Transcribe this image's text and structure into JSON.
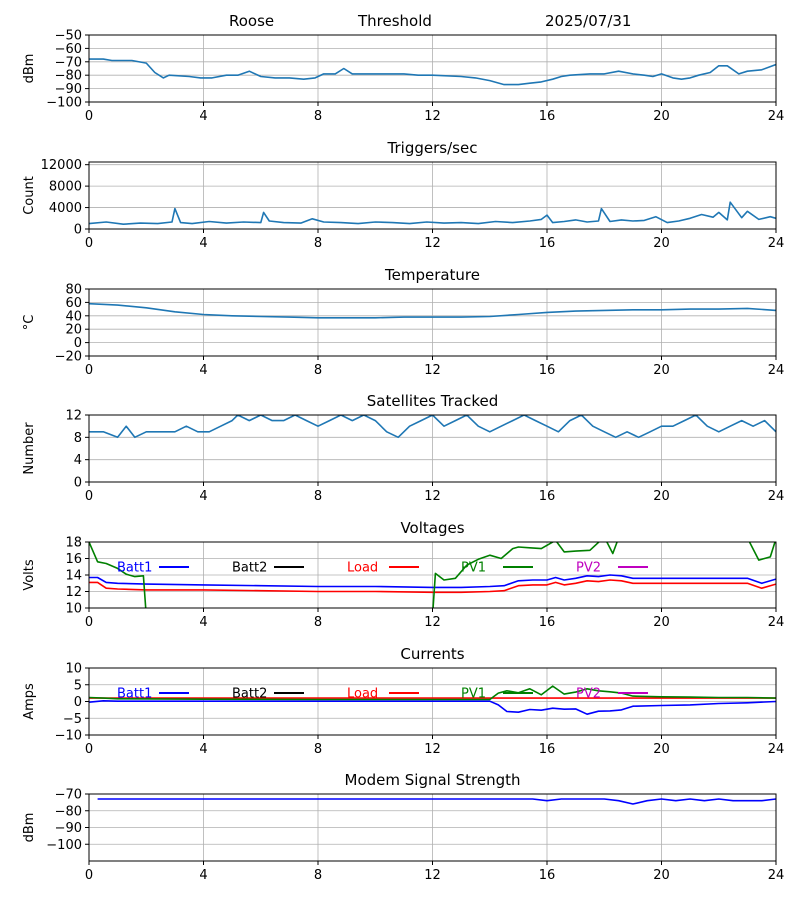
{
  "header": {
    "station": "Roose",
    "mode": "Threshold",
    "date": "2025/07/31"
  },
  "colors": {
    "trace": "#1f77b4",
    "batt1": "#0000ff",
    "batt2": "#000000",
    "load": "#ff0000",
    "pv1": "#008000",
    "pv2": "#bf00bf",
    "grid": "#b0b0b0"
  },
  "chart_data": [
    {
      "id": "signal",
      "type": "line",
      "title": "",
      "xlabel": "",
      "ylabel": "dBm",
      "xlim": [
        0,
        24
      ],
      "ylim": [
        -100,
        -50
      ],
      "xticks": [
        0,
        4,
        8,
        12,
        16,
        20,
        24
      ],
      "yticks": [
        -100,
        -90,
        -80,
        -70,
        -60,
        -50
      ],
      "grid": true,
      "series": [
        {
          "color": "#1f77b4",
          "x": [
            0,
            0.5,
            0.8,
            1.5,
            2.0,
            2.3,
            2.6,
            2.8,
            3.5,
            3.9,
            4.3,
            4.8,
            5.2,
            5.6,
            6.0,
            6.5,
            7.0,
            7.5,
            7.9,
            8.2,
            8.6,
            8.9,
            9.2,
            10.0,
            11.0,
            11.5,
            12.0,
            13.0,
            13.5,
            14.0,
            14.5,
            15.0,
            15.4,
            15.8,
            16.2,
            16.5,
            16.8,
            17.5,
            18.0,
            18.5,
            19.0,
            19.4,
            19.7,
            20.0,
            20.4,
            20.7,
            21.0,
            21.3,
            21.7,
            22.0,
            22.3,
            22.7,
            23.0,
            23.5,
            24.0
          ],
          "y": [
            -68,
            -68,
            -69,
            -69,
            -71,
            -78,
            -82,
            -80,
            -81,
            -82,
            -82,
            -80,
            -80,
            -77,
            -81,
            -82,
            -82,
            -83,
            -82,
            -79,
            -79,
            -75,
            -79,
            -79,
            -79,
            -80,
            -80,
            -81,
            -82,
            -84,
            -87,
            -87,
            -86,
            -85,
            -83,
            -81,
            -80,
            -79,
            -79,
            -77,
            -79,
            -80,
            -81,
            -79,
            -82,
            -83,
            -82,
            -80,
            -78,
            -73,
            -73,
            -79,
            -77,
            -76,
            -72
          ]
        }
      ]
    },
    {
      "id": "triggers",
      "type": "line",
      "title": "Triggers/sec",
      "xlabel": "",
      "ylabel": "Count",
      "xlim": [
        0,
        24
      ],
      "ylim": [
        0,
        12500
      ],
      "xticks": [
        0,
        4,
        8,
        12,
        16,
        20,
        24
      ],
      "yticks": [
        0,
        4000,
        8000,
        12000
      ],
      "grid": true,
      "series": [
        {
          "color": "#1f77b4",
          "x": [
            0,
            0.6,
            1.2,
            1.8,
            2.4,
            2.9,
            3.0,
            3.2,
            3.6,
            4.2,
            4.8,
            5.4,
            6.0,
            6.1,
            6.3,
            6.8,
            7.4,
            7.8,
            8.2,
            8.8,
            9.4,
            10.0,
            10.6,
            11.2,
            11.8,
            12.4,
            13.0,
            13.6,
            14.2,
            14.8,
            15.4,
            15.8,
            16.0,
            16.2,
            16.6,
            17.0,
            17.4,
            17.8,
            17.9,
            18.2,
            18.6,
            19.0,
            19.4,
            19.8,
            20.2,
            20.6,
            21.0,
            21.4,
            21.8,
            22.0,
            22.3,
            22.4,
            22.8,
            23.0,
            23.4,
            23.8,
            24.0
          ],
          "y": [
            1000,
            1300,
            900,
            1100,
            1000,
            1300,
            3800,
            1200,
            1000,
            1400,
            1100,
            1300,
            1200,
            3100,
            1500,
            1200,
            1100,
            1900,
            1300,
            1200,
            1000,
            1300,
            1200,
            1000,
            1300,
            1100,
            1200,
            1000,
            1400,
            1200,
            1500,
            1800,
            2600,
            1200,
            1400,
            1700,
            1300,
            1500,
            3800,
            1400,
            1700,
            1500,
            1600,
            2300,
            1200,
            1500,
            2000,
            2700,
            2200,
            3100,
            1700,
            5000,
            2100,
            3300,
            1800,
            2300,
            2000
          ]
        }
      ]
    },
    {
      "id": "temperature",
      "type": "line",
      "title": "Temperature",
      "xlabel": "",
      "ylabel": "°C",
      "xlim": [
        0,
        24
      ],
      "ylim": [
        -20,
        80
      ],
      "xticks": [
        0,
        4,
        8,
        12,
        16,
        20,
        24
      ],
      "yticks": [
        -20,
        0,
        20,
        40,
        60,
        80
      ],
      "grid": true,
      "series": [
        {
          "color": "#1f77b4",
          "x": [
            0,
            1,
            2,
            3,
            4,
            5,
            6,
            7,
            8,
            9,
            10,
            11,
            12,
            13,
            14,
            15,
            16,
            17,
            18,
            19,
            20,
            21,
            22,
            23,
            24
          ],
          "y": [
            58,
            56,
            52,
            46,
            42,
            40,
            39,
            38,
            37,
            37,
            37,
            38,
            38,
            38,
            39,
            42,
            45,
            47,
            48,
            49,
            49,
            50,
            50,
            51,
            48
          ]
        }
      ]
    },
    {
      "id": "satellites",
      "type": "line",
      "title": "Satellites Tracked",
      "xlabel": "",
      "ylabel": "Number",
      "xlim": [
        0,
        24
      ],
      "ylim": [
        0,
        12
      ],
      "xticks": [
        0,
        4,
        8,
        12,
        16,
        20,
        24
      ],
      "yticks": [
        0,
        4,
        8,
        12
      ],
      "grid": true,
      "series": [
        {
          "color": "#1f77b4",
          "x": [
            0,
            0.5,
            1.0,
            1.3,
            1.6,
            2.0,
            2.5,
            3.0,
            3.4,
            3.8,
            4.2,
            4.6,
            5.0,
            5.2,
            5.6,
            6.0,
            6.4,
            6.8,
            7.2,
            7.6,
            8.0,
            8.4,
            8.8,
            9.2,
            9.6,
            10.0,
            10.4,
            10.8,
            11.2,
            11.6,
            12.0,
            12.4,
            12.8,
            13.2,
            13.6,
            14.0,
            14.4,
            14.8,
            15.2,
            15.6,
            16.0,
            16.4,
            16.8,
            17.2,
            17.6,
            18.0,
            18.4,
            18.8,
            19.2,
            19.6,
            20.0,
            20.4,
            20.8,
            21.2,
            21.6,
            22.0,
            22.4,
            22.8,
            23.2,
            23.6,
            24.0
          ],
          "y": [
            9,
            9,
            8,
            10,
            8,
            9,
            9,
            9,
            10,
            9,
            9,
            10,
            11,
            12,
            11,
            12,
            11,
            11,
            12,
            11,
            10,
            11,
            12,
            11,
            12,
            11,
            9,
            8,
            10,
            11,
            12,
            10,
            11,
            12,
            10,
            9,
            10,
            11,
            12,
            11,
            10,
            9,
            11,
            12,
            10,
            9,
            8,
            9,
            8,
            9,
            10,
            10,
            11,
            12,
            10,
            9,
            10,
            11,
            10,
            11,
            9
          ]
        }
      ]
    },
    {
      "id": "voltages",
      "type": "line",
      "title": "Voltages",
      "xlabel": "",
      "ylabel": "Volts",
      "xlim": [
        0,
        24
      ],
      "ylim": [
        10,
        18
      ],
      "xticks": [
        0,
        4,
        8,
        12,
        16,
        20,
        24
      ],
      "yticks": [
        10,
        12,
        14,
        16,
        18
      ],
      "grid": true,
      "legend": "top inside, horizontal",
      "series": [
        {
          "name": "Batt1",
          "color": "#0000ff",
          "x": [
            0,
            0.3,
            0.6,
            1.0,
            2.0,
            4.0,
            6.0,
            8.0,
            10.0,
            12.0,
            13.0,
            14.0,
            14.5,
            15.0,
            15.5,
            16.0,
            16.3,
            16.6,
            17.0,
            17.4,
            17.8,
            18.2,
            18.6,
            19.0,
            20.0,
            21.0,
            22.0,
            23.0,
            23.5,
            24.0
          ],
          "y": [
            13.7,
            13.7,
            13.1,
            13.0,
            12.9,
            12.8,
            12.7,
            12.6,
            12.6,
            12.5,
            12.5,
            12.6,
            12.7,
            13.3,
            13.4,
            13.4,
            13.7,
            13.4,
            13.6,
            13.9,
            13.8,
            14.0,
            13.9,
            13.6,
            13.6,
            13.6,
            13.6,
            13.6,
            13.0,
            13.5
          ]
        },
        {
          "name": "Batt2",
          "color": "#000000",
          "x": [],
          "y": []
        },
        {
          "name": "Load",
          "color": "#ff0000",
          "x": [
            0,
            0.3,
            0.6,
            1.0,
            2.0,
            4.0,
            6.0,
            8.0,
            10.0,
            12.0,
            13.0,
            14.0,
            14.5,
            15.0,
            15.5,
            16.0,
            16.3,
            16.6,
            17.0,
            17.4,
            17.8,
            18.2,
            18.6,
            19.0,
            20.0,
            21.0,
            22.0,
            23.0,
            23.5,
            24.0
          ],
          "y": [
            13.1,
            13.1,
            12.4,
            12.3,
            12.2,
            12.2,
            12.1,
            12.0,
            12.0,
            11.9,
            11.9,
            12.0,
            12.1,
            12.7,
            12.8,
            12.8,
            13.1,
            12.8,
            13.0,
            13.3,
            13.2,
            13.4,
            13.3,
            13.0,
            13.0,
            13.0,
            13.0,
            13.0,
            12.4,
            12.9
          ]
        },
        {
          "name": "PV1",
          "color": "#008000",
          "x": [
            0,
            0.3,
            0.6,
            1.0,
            1.3,
            1.6,
            1.9,
            2.0,
            2.1,
            12.0,
            12.1,
            12.4,
            12.8,
            13.2,
            13.6,
            14.0,
            14.4,
            14.8,
            15.0,
            15.4,
            15.8,
            16.0,
            16.3,
            16.6,
            17.0,
            17.5,
            18.0,
            18.3,
            18.5,
            18.8,
            19.1,
            23.0,
            23.4,
            23.8,
            24.0
          ],
          "y": [
            18.0,
            15.6,
            15.4,
            14.8,
            14.1,
            13.8,
            13.9,
            9.0,
            9.0,
            9.0,
            14.2,
            13.4,
            13.6,
            15.2,
            15.9,
            16.4,
            16.0,
            17.2,
            17.4,
            17.3,
            17.2,
            17.6,
            18.2,
            16.8,
            16.9,
            17.0,
            18.6,
            16.6,
            18.5,
            18.5,
            18.5,
            18.5,
            15.8,
            16.2,
            18.4
          ]
        },
        {
          "name": "PV2",
          "color": "#bf00bf",
          "x": [],
          "y": []
        }
      ]
    },
    {
      "id": "currents",
      "type": "line",
      "title": "Currents",
      "xlabel": "",
      "ylabel": "Amps",
      "xlim": [
        0,
        24
      ],
      "ylim": [
        -10,
        10
      ],
      "xticks": [
        0,
        4,
        8,
        12,
        16,
        20,
        24
      ],
      "yticks": [
        -10,
        -5,
        0,
        5,
        10
      ],
      "grid": true,
      "legend": "top inside, horizontal",
      "series": [
        {
          "name": "Batt1",
          "color": "#0000ff",
          "x": [
            0,
            0.5,
            1.0,
            4.0,
            8.0,
            12.0,
            14.0,
            14.3,
            14.6,
            15.0,
            15.4,
            15.8,
            16.2,
            16.6,
            17.0,
            17.4,
            17.8,
            18.2,
            18.6,
            19.0,
            20.0,
            21.0,
            22.0,
            23.0,
            24.0
          ],
          "y": [
            -0.2,
            0.2,
            0.1,
            0.1,
            0.1,
            0.1,
            0.1,
            -1.0,
            -3.0,
            -3.2,
            -2.4,
            -2.6,
            -2.0,
            -2.3,
            -2.2,
            -3.8,
            -2.9,
            -2.8,
            -2.5,
            -1.4,
            -1.2,
            -1.0,
            -0.6,
            -0.4,
            0.0
          ]
        },
        {
          "name": "Batt2",
          "color": "#000000",
          "x": [],
          "y": []
        },
        {
          "name": "Load",
          "color": "#ff0000",
          "x": [
            0,
            24
          ],
          "y": [
            1.0,
            1.0
          ]
        },
        {
          "name": "PV1",
          "color": "#008000",
          "x": [
            0,
            0.5,
            1.0,
            4.0,
            8.0,
            12.0,
            14.0,
            14.3,
            14.6,
            15.0,
            15.4,
            15.8,
            16.2,
            16.6,
            17.0,
            17.4,
            17.8,
            18.2,
            18.6,
            19.0,
            20.0,
            21.0,
            22.0,
            23.0,
            24.0
          ],
          "y": [
            1.2,
            1.0,
            0.8,
            0.7,
            0.6,
            0.6,
            0.6,
            2.5,
            3.2,
            2.6,
            3.8,
            2.0,
            4.6,
            2.2,
            2.8,
            3.8,
            3.2,
            2.9,
            2.5,
            1.6,
            1.4,
            1.3,
            1.2,
            1.2,
            1.0
          ]
        },
        {
          "name": "PV2",
          "color": "#bf00bf",
          "x": [],
          "y": []
        }
      ]
    },
    {
      "id": "modem",
      "type": "line",
      "title": "Modem Signal Strength",
      "xlabel": "",
      "ylabel": "dBm",
      "xlim": [
        0,
        24
      ],
      "ylim": [
        -110,
        -70
      ],
      "xticks": [
        0,
        4,
        8,
        12,
        16,
        20,
        24
      ],
      "yticks": [
        -100,
        -90,
        -80,
        -70
      ],
      "grid": true,
      "series": [
        {
          "color": "#0000ff",
          "x": [
            0.3,
            4.0,
            8.0,
            12.0,
            15.5,
            16.0,
            16.5,
            17.0,
            18.0,
            18.5,
            19.0,
            19.5,
            20.0,
            20.5,
            21.0,
            21.5,
            22.0,
            22.5,
            23.0,
            23.5,
            24.0
          ],
          "y": [
            -73,
            -73,
            -73,
            -73,
            -73,
            -74,
            -73,
            -73,
            -73,
            -74,
            -76,
            -74,
            -73,
            -74,
            -73,
            -74,
            -73,
            -74,
            -74,
            -74,
            -73
          ]
        }
      ]
    }
  ]
}
